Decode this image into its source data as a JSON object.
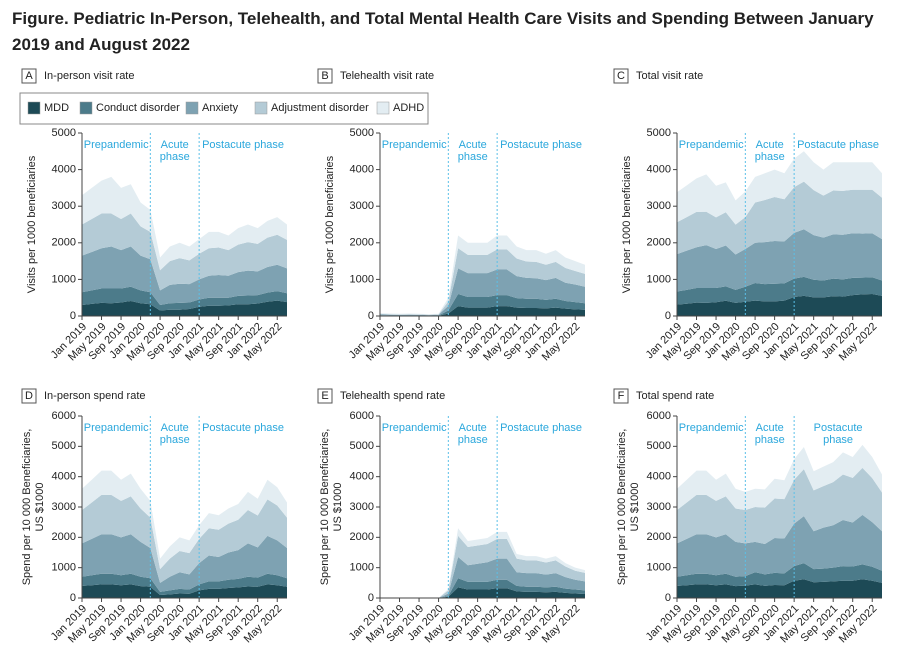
{
  "title": "Figure.  Pediatric In-Person, Telehealth, and Total Mental Health Care Visits and Spending Between January 2019 and August 2022",
  "legend": [
    {
      "name": "MDD",
      "color": "#1d4a56"
    },
    {
      "name": "Conduct disorder",
      "color": "#4c7b8a"
    },
    {
      "name": "Anxiety",
      "color": "#7ea2b2"
    },
    {
      "name": "Adjustment disorder",
      "color": "#b4cbd6"
    },
    {
      "name": "ADHD",
      "color": "#e3edf2"
    }
  ],
  "chart_data": [
    {
      "type": "area",
      "letter": "A",
      "title": "In-person visit rate",
      "ylabel": [
        "Visits per 1000 beneficiaries"
      ],
      "phases": [
        [
          "Prepandemic"
        ],
        [
          "Acute",
          "phase"
        ],
        [
          "Postacute phase"
        ]
      ],
      "categories": [
        "Jan 2019",
        null,
        "May 2019",
        null,
        "Sep 2019",
        null,
        "Jan 2020",
        null,
        "May 2020",
        null,
        "Sep 2020",
        null,
        "Jan 2021",
        null,
        "May 2021",
        null,
        "Sep 2021",
        null,
        "Jan 2022",
        null,
        "May 2022",
        null
      ],
      "ylim": [
        0,
        5000
      ],
      "yticks": [
        0,
        1000,
        2000,
        3000,
        4000,
        5000
      ],
      "series": [
        {
          "values": [
            300,
            330,
            360,
            350,
            370,
            410,
            350,
            320,
            150,
            170,
            170,
            190,
            250,
            280,
            280,
            290,
            320,
            320,
            340,
            390,
            420,
            380
          ]
        },
        {
          "values": [
            350,
            370,
            390,
            400,
            380,
            390,
            350,
            330,
            150,
            180,
            190,
            180,
            200,
            220,
            220,
            210,
            230,
            240,
            230,
            250,
            260,
            240
          ]
        },
        {
          "values": [
            1000,
            1050,
            1100,
            1150,
            1050,
            1100,
            950,
            900,
            400,
            500,
            520,
            500,
            550,
            600,
            620,
            600,
            650,
            680,
            650,
            700,
            720,
            680
          ]
        },
        {
          "values": [
            850,
            900,
            950,
            900,
            850,
            900,
            800,
            750,
            550,
            650,
            700,
            650,
            700,
            750,
            750,
            700,
            750,
            780,
            750,
            800,
            820,
            780
          ]
        },
        {
          "values": [
            800,
            850,
            900,
            1000,
            850,
            800,
            650,
            600,
            350,
            400,
            420,
            380,
            400,
            450,
            430,
            400,
            450,
            480,
            430,
            460,
            480,
            420
          ]
        }
      ]
    },
    {
      "type": "area",
      "letter": "B",
      "title": "Telehealth visit rate",
      "ylabel": [
        "Visits per 1000 beneficiaries"
      ],
      "phases": [
        [
          "Prepandemic"
        ],
        [
          "Acute",
          "phase"
        ],
        [
          "Postacute phase"
        ]
      ],
      "categories": [
        "Jan 2019",
        null,
        "May 2019",
        null,
        "Sep 2019",
        null,
        "Jan 2020",
        null,
        "May 2020",
        null,
        "Sep 2020",
        null,
        "Jan 2021",
        null,
        "May 2021",
        null,
        "Sep 2021",
        null,
        "Jan 2022",
        null,
        "May 2022",
        null
      ],
      "ylim": [
        0,
        5000
      ],
      "yticks": [
        0,
        1000,
        2000,
        3000,
        4000,
        5000
      ],
      "series": [
        {
          "values": [
            10,
            5,
            7,
            7,
            7,
            5,
            7,
            70,
            270,
            230,
            230,
            230,
            270,
            270,
            230,
            220,
            220,
            210,
            230,
            200,
            180,
            170
          ]
        },
        {
          "values": [
            10,
            10,
            8,
            8,
            8,
            5,
            8,
            80,
            330,
            290,
            290,
            290,
            300,
            300,
            260,
            250,
            250,
            230,
            240,
            210,
            200,
            180
          ]
        },
        {
          "values": [
            20,
            20,
            15,
            20,
            15,
            15,
            15,
            130,
            700,
            650,
            650,
            650,
            700,
            700,
            600,
            570,
            560,
            540,
            570,
            500,
            480,
            450
          ]
        },
        {
          "values": [
            20,
            15,
            15,
            15,
            15,
            10,
            15,
            120,
            550,
            500,
            500,
            500,
            550,
            550,
            480,
            450,
            450,
            420,
            440,
            400,
            370,
            350
          ]
        },
        {
          "values": [
            20,
            20,
            15,
            20,
            15,
            15,
            15,
            100,
            350,
            330,
            330,
            330,
            380,
            380,
            330,
            310,
            320,
            300,
            320,
            290,
            270,
            250
          ]
        }
      ]
    },
    {
      "type": "area",
      "letter": "C",
      "title": "Total visit rate",
      "ylabel": [
        "Visits per 1000 beneficiaries"
      ],
      "phases": [
        [
          "Prepandemic"
        ],
        [
          "Acute",
          "phase"
        ],
        [
          "Postacute phase"
        ]
      ],
      "categories": [
        "Jan 2019",
        null,
        "May 2019",
        null,
        "Sep 2019",
        null,
        "Jan 2020",
        null,
        "May 2020",
        null,
        "Sep 2020",
        null,
        "Jan 2021",
        null,
        "May 2021",
        null,
        "Sep 2021",
        null,
        "Jan 2022",
        null,
        "May 2022",
        null
      ],
      "ylim": [
        0,
        5000
      ],
      "yticks": [
        0,
        1000,
        2000,
        3000,
        4000,
        5000
      ],
      "series": [
        {
          "values": [
            310,
            335,
            367,
            357,
            377,
            415,
            357,
            390,
            420,
            400,
            400,
            420,
            520,
            550,
            510,
            510,
            540,
            530,
            570,
            590,
            600,
            550
          ]
        },
        {
          "values": [
            360,
            380,
            398,
            408,
            388,
            395,
            358,
            410,
            480,
            470,
            480,
            470,
            500,
            520,
            480,
            460,
            480,
            470,
            470,
            460,
            460,
            420
          ]
        },
        {
          "values": [
            1020,
            1070,
            1115,
            1170,
            1065,
            1115,
            965,
            1030,
            1100,
            1150,
            1170,
            1150,
            1250,
            1300,
            1220,
            1170,
            1210,
            1220,
            1220,
            1200,
            1200,
            1130
          ]
        },
        {
          "values": [
            870,
            915,
            965,
            915,
            865,
            910,
            815,
            870,
            1100,
            1150,
            1200,
            1150,
            1250,
            1300,
            1230,
            1150,
            1200,
            1200,
            1190,
            1200,
            1190,
            1130
          ]
        },
        {
          "values": [
            820,
            870,
            915,
            1020,
            865,
            815,
            665,
            700,
            700,
            730,
            750,
            710,
            780,
            830,
            760,
            710,
            770,
            780,
            750,
            750,
            750,
            670
          ]
        }
      ]
    },
    {
      "type": "area",
      "letter": "D",
      "title": "In-person spend rate",
      "ylabel": [
        "Spend per 10 000 Beneficiaries,",
        "US $1000"
      ],
      "phases": [
        [
          "Prepandemic"
        ],
        [
          "Acute",
          "phase"
        ],
        [
          "Postacute phase"
        ]
      ],
      "categories": [
        "Jan 2019",
        null,
        "May 2019",
        null,
        "Sep 2019",
        null,
        "Jan 2020",
        null,
        "May 2020",
        null,
        "Sep 2020",
        null,
        "Jan 2021",
        null,
        "May 2021",
        null,
        "Sep 2021",
        null,
        "Jan 2022",
        null,
        "May 2022",
        null
      ],
      "ylim": [
        0,
        6000
      ],
      "yticks": [
        0,
        1000,
        2000,
        3000,
        4000,
        5000,
        6000
      ],
      "series": [
        {
          "values": [
            400,
            420,
            450,
            450,
            420,
            450,
            390,
            370,
            100,
            120,
            150,
            140,
            250,
            300,
            300,
            330,
            350,
            380,
            370,
            450,
            420,
            370
          ]
        },
        {
          "values": [
            300,
            330,
            350,
            350,
            330,
            350,
            310,
            280,
            100,
            130,
            150,
            140,
            200,
            250,
            250,
            270,
            280,
            320,
            300,
            350,
            330,
            280
          ]
        },
        {
          "values": [
            1100,
            1200,
            1300,
            1300,
            1250,
            1300,
            1150,
            1000,
            300,
            450,
            550,
            500,
            700,
            850,
            800,
            900,
            950,
            1100,
            1000,
            1250,
            1150,
            1000
          ]
        },
        {
          "values": [
            1100,
            1200,
            1300,
            1300,
            1200,
            1250,
            1100,
            1000,
            450,
            600,
            700,
            700,
            800,
            900,
            900,
            950,
            1000,
            1100,
            1050,
            1200,
            1150,
            1000
          ]
        },
        {
          "values": [
            700,
            750,
            800,
            800,
            700,
            750,
            650,
            550,
            350,
            400,
            450,
            420,
            450,
            500,
            480,
            500,
            520,
            600,
            550,
            650,
            600,
            500
          ]
        }
      ]
    },
    {
      "type": "area",
      "letter": "E",
      "title": "Telehealth spend rate",
      "ylabel": [
        "Spend per 10 000 Beneficiaries,",
        "US $1000"
      ],
      "phases": [
        [
          "Prepandemic"
        ],
        [
          "Acute",
          "phase"
        ],
        [
          "Postacute phase"
        ]
      ],
      "categories": [
        "Jan 2019",
        null,
        "May 2019",
        null,
        "Sep 2019",
        null,
        "Jan 2020",
        null,
        "May 2020",
        null,
        "Sep 2020",
        null,
        "Jan 2021",
        null,
        "May 2021",
        null,
        "Sep 2021",
        null,
        "Jan 2022",
        null,
        "May 2022",
        null
      ],
      "ylim": [
        0,
        6000
      ],
      "yticks": [
        0,
        1000,
        2000,
        3000,
        4000,
        5000,
        6000
      ],
      "series": [
        {
          "values": [
            0,
            0,
            0,
            0,
            0,
            0,
            0,
            40,
            350,
            280,
            280,
            280,
            320,
            320,
            220,
            200,
            200,
            190,
            200,
            170,
            150,
            130
          ]
        },
        {
          "values": [
            0,
            0,
            0,
            0,
            0,
            0,
            0,
            30,
            300,
            250,
            250,
            250,
            280,
            280,
            180,
            170,
            170,
            160,
            170,
            140,
            130,
            120
          ]
        },
        {
          "values": [
            0,
            0,
            0,
            0,
            0,
            0,
            0,
            80,
            700,
            550,
            600,
            650,
            700,
            700,
            450,
            450,
            450,
            420,
            450,
            380,
            320,
            300
          ]
        },
        {
          "values": [
            0,
            0,
            0,
            0,
            0,
            0,
            0,
            100,
            700,
            600,
            600,
            600,
            650,
            650,
            450,
            420,
            420,
            400,
            420,
            350,
            300,
            280
          ]
        },
        {
          "values": [
            0,
            0,
            0,
            0,
            0,
            0,
            0,
            50,
            250,
            200,
            200,
            200,
            230,
            230,
            150,
            140,
            140,
            130,
            140,
            110,
            100,
            90
          ]
        }
      ]
    },
    {
      "type": "area",
      "letter": "F",
      "title": "Total spend rate",
      "ylabel": [
        "Spend per 10 000 Beneficiaries,",
        "US $1000"
      ],
      "phases": [
        [
          "Prepandemic"
        ],
        [
          "Acute",
          "phase"
        ],
        [
          "Postacute",
          "phase"
        ]
      ],
      "categories": [
        "Jan 2019",
        null,
        "May 2019",
        null,
        "Sep 2019",
        null,
        "Jan 2020",
        null,
        "May 2020",
        null,
        "Sep 2020",
        null,
        "Jan 2021",
        null,
        "May 2021",
        null,
        "Sep 2021",
        null,
        "Jan 2022",
        null,
        "May 2022",
        null
      ],
      "ylim": [
        0,
        6000
      ],
      "yticks": [
        0,
        1000,
        2000,
        3000,
        4000,
        5000,
        6000
      ],
      "series": [
        {
          "values": [
            400,
            420,
            450,
            450,
            420,
            450,
            390,
            410,
            450,
            400,
            430,
            420,
            570,
            620,
            520,
            530,
            550,
            570,
            570,
            620,
            570,
            500
          ]
        },
        {
          "values": [
            300,
            330,
            350,
            350,
            330,
            350,
            310,
            310,
            400,
            380,
            400,
            390,
            480,
            530,
            430,
            440,
            450,
            480,
            470,
            490,
            460,
            400
          ]
        },
        {
          "values": [
            1100,
            1200,
            1300,
            1300,
            1250,
            1300,
            1150,
            1080,
            1000,
            1000,
            1150,
            1150,
            1400,
            1550,
            1250,
            1350,
            1400,
            1520,
            1450,
            1630,
            1470,
            1300
          ]
        },
        {
          "values": [
            1100,
            1200,
            1300,
            1300,
            1200,
            1250,
            1100,
            1100,
            1150,
            1200,
            1300,
            1300,
            1450,
            1550,
            1350,
            1370,
            1420,
            1500,
            1470,
            1550,
            1450,
            1280
          ]
        },
        {
          "values": [
            700,
            750,
            800,
            800,
            700,
            750,
            650,
            600,
            600,
            600,
            650,
            620,
            680,
            730,
            630,
            640,
            660,
            730,
            690,
            760,
            700,
            590
          ]
        }
      ]
    }
  ]
}
